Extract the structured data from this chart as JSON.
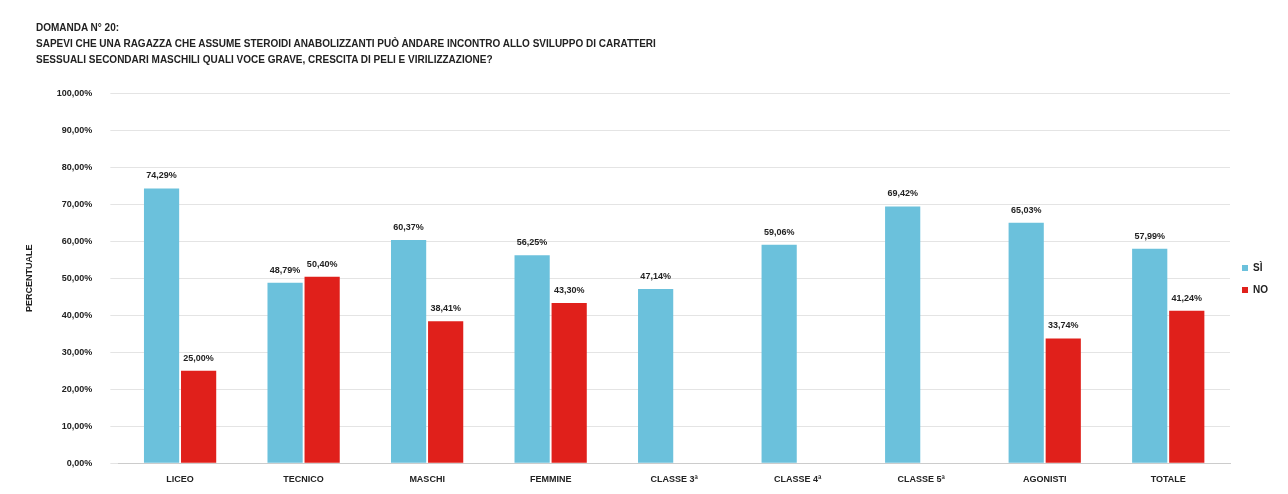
{
  "chart_data": {
    "type": "bar",
    "title": "DOMANDA N° 20:",
    "subtitle": "SAPEVI CHE UNA RAGAZZA CHE ASSUME STEROIDI ANABOLIZZANTI PUÒ ANDARE INCONTRO ALLO SVILUPPO DI CARATTERI SESSUALI SECONDARI MASCHILI QUALI VOCE GRAVE, CRESCITA DI PELI E VIRILIZZAZIONE?",
    "ylabel": "PERCENTUALE",
    "categories": [
      "LICEO",
      "TECNICO",
      "MASCHI",
      "FEMMINE",
      "CLASSE 3ª",
      "CLASSE 4ª",
      "CLASSE 5ª",
      "AGONISTI",
      "TOTALE"
    ],
    "series": [
      {
        "name": "SÌ",
        "color": "#6bc1dc",
        "values": [
          74.29,
          48.79,
          60.37,
          56.25,
          47.14,
          59.06,
          69.42,
          65.03,
          57.99
        ],
        "value_labels": [
          "74,29%",
          "48,79%",
          "60,37%",
          "56,25%",
          "47,14%",
          "59,06%",
          "69,42%",
          "65,03%",
          "57,99%"
        ]
      },
      {
        "name": "NO",
        "color": "#e0201b",
        "values": [
          25.0,
          50.4,
          38.41,
          43.3,
          null,
          null,
          null,
          33.74,
          41.24
        ],
        "value_labels": [
          "25,00%",
          "50,40%",
          "38,41%",
          "43,30%",
          null,
          null,
          null,
          "33,74%",
          "41,24%"
        ]
      }
    ],
    "ylim": [
      0,
      100
    ],
    "yticks": [
      {
        "value": 0,
        "label": "0,00%"
      },
      {
        "value": 10,
        "label": "10,00%"
      },
      {
        "value": 20,
        "label": "20,00%"
      },
      {
        "value": 30,
        "label": "30,00%"
      },
      {
        "value": 40,
        "label": "40,00%"
      },
      {
        "value": 50,
        "label": "50,00%"
      },
      {
        "value": 60,
        "label": "60,00%"
      },
      {
        "value": 70,
        "label": "70,00%"
      },
      {
        "value": 80,
        "label": "80,00%"
      },
      {
        "value": 90,
        "label": "90,00%"
      },
      {
        "value": 100,
        "label": "100,00%"
      }
    ],
    "grid": "y",
    "legend": "right"
  }
}
